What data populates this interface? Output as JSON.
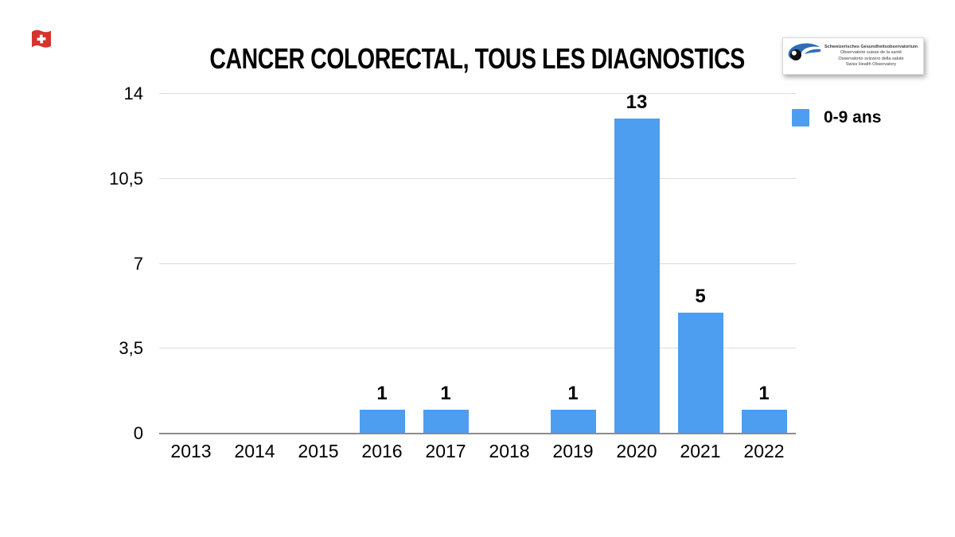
{
  "page": {
    "background": "#ffffff"
  },
  "header": {
    "flag_icon": "swiss-flag",
    "title": "CANCER COLORECTAL, TOUS LES DIAGNOSTICS",
    "logo": {
      "lines": [
        "Schweizerisches Gesundheitsobservatorium",
        "Observatoire suisse de la santé",
        "Osservatorio svizzero della salute",
        "Swiss Health Observatory"
      ],
      "eye_blue": "#2F6EB5",
      "pupil_black": "#111111"
    }
  },
  "legend": {
    "label": "0-9 ans",
    "color": "#4D9DF0"
  },
  "colors": {
    "bar_blue": "#4D9DF0",
    "gridline": "#DCDCDC",
    "axis_line": "#8C8C8C",
    "flag_red": "#D5342C",
    "text": "#000000"
  },
  "chart_data": {
    "type": "bar",
    "title": "CANCER COLORECTAL, TOUS LES DIAGNOSTICS",
    "categories": [
      "2013",
      "2014",
      "2015",
      "2016",
      "2017",
      "2018",
      "2019",
      "2020",
      "2021",
      "2022"
    ],
    "series": [
      {
        "name": "0-9 ans",
        "color": "#4D9DF0",
        "values": [
          0,
          0,
          0,
          1,
          1,
          0,
          1,
          13,
          5,
          1
        ]
      }
    ],
    "bar_labels": [
      "",
      "",
      "",
      "1",
      "1",
      "",
      "1",
      "13",
      "5",
      "1"
    ],
    "xlabel": "",
    "ylabel": "",
    "ylim": [
      0,
      14
    ],
    "y_ticks": [
      0,
      3.5,
      7,
      10.5,
      14
    ],
    "y_tick_labels": [
      "0",
      "3,5",
      "7",
      "10,5",
      "14"
    ],
    "grid": true,
    "legend_position": "top-right"
  }
}
